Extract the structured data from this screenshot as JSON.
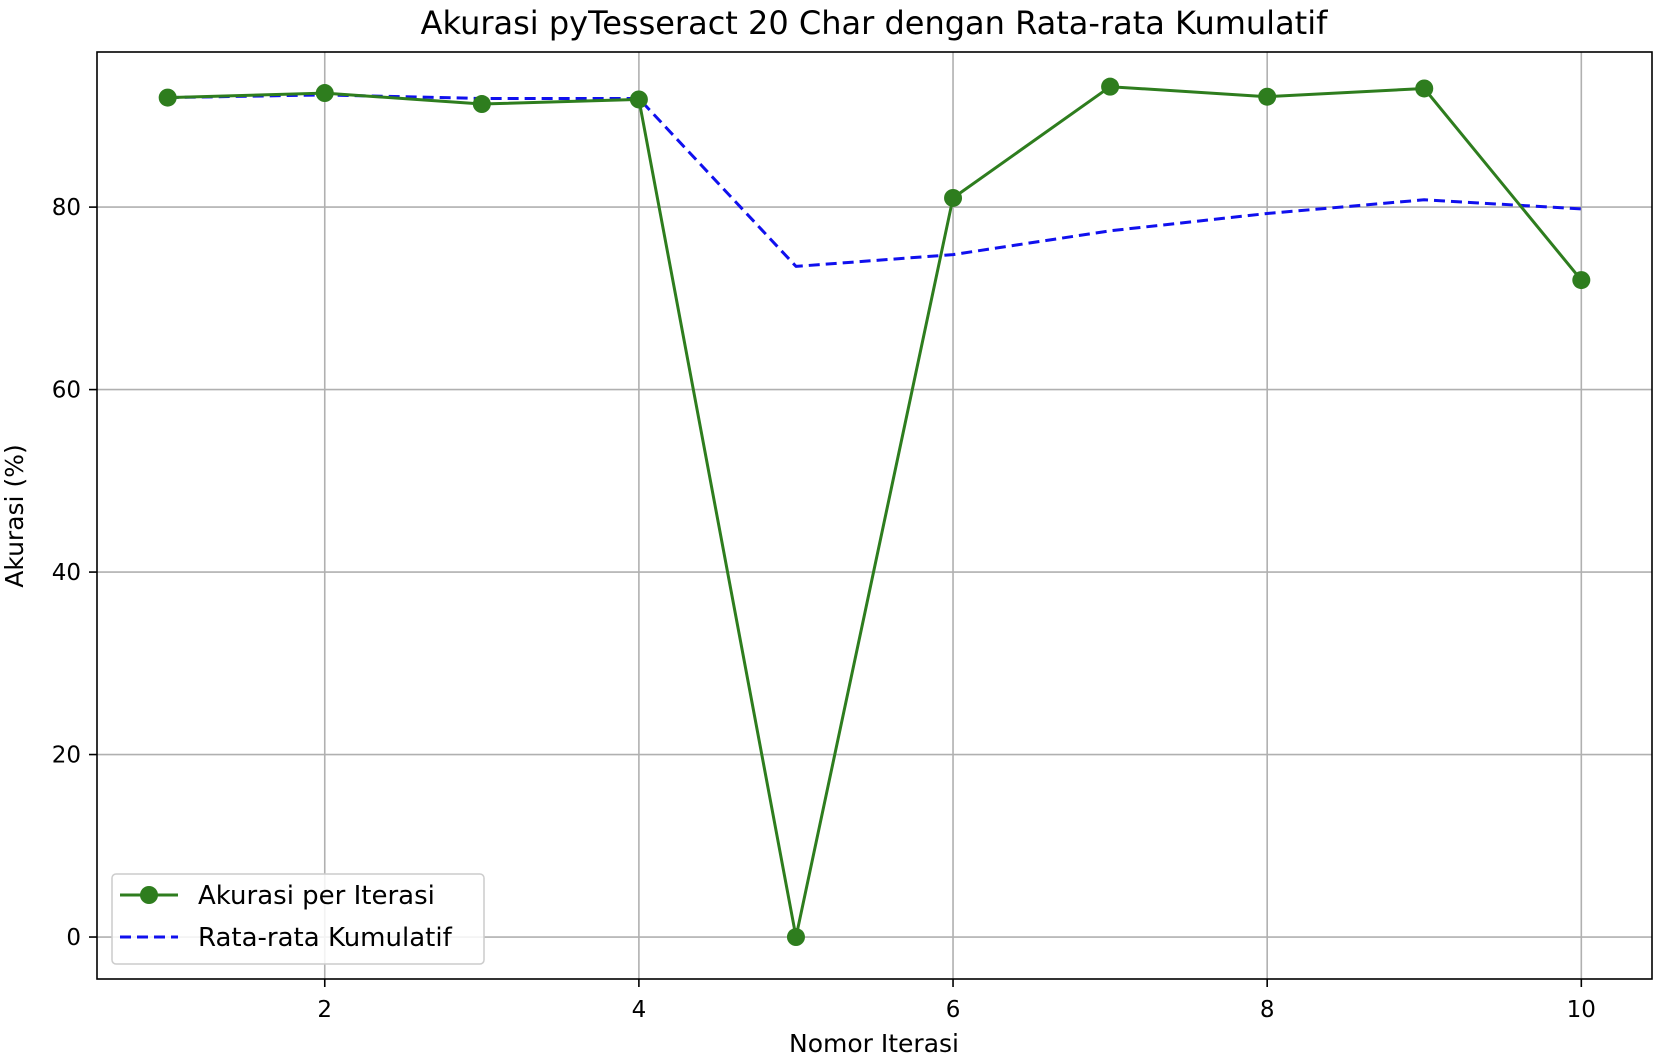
{
  "chart_data": {
    "type": "line",
    "title": "Akurasi pyTesseract 20 Char dengan Rata-rata Kumulatif",
    "xlabel": "Nomor Iterasi",
    "ylabel": "Akurasi (%)",
    "x": [
      1,
      2,
      3,
      4,
      5,
      6,
      7,
      8,
      9,
      10
    ],
    "xlim": [
      0.55,
      10.45
    ],
    "ylim": [
      -4.6,
      97.0
    ],
    "xticks": [
      2,
      4,
      6,
      8,
      10
    ],
    "yticks": [
      0,
      20,
      40,
      60,
      80
    ],
    "grid": true,
    "legend_position": "lower-left",
    "series": [
      {
        "name": "Akurasi per Iterasi",
        "style": "solid-with-markers",
        "color": "#2e7d1e",
        "values": [
          92.0,
          92.5,
          91.3,
          91.8,
          0.0,
          81.0,
          93.2,
          92.1,
          93.0,
          72.0
        ]
      },
      {
        "name": "Rata-rata Kumulatif",
        "style": "dashed",
        "color": "#1010ee",
        "values": [
          92.0,
          92.3,
          91.9,
          91.9,
          73.5,
          74.8,
          77.4,
          79.3,
          80.8,
          79.8
        ]
      }
    ]
  }
}
